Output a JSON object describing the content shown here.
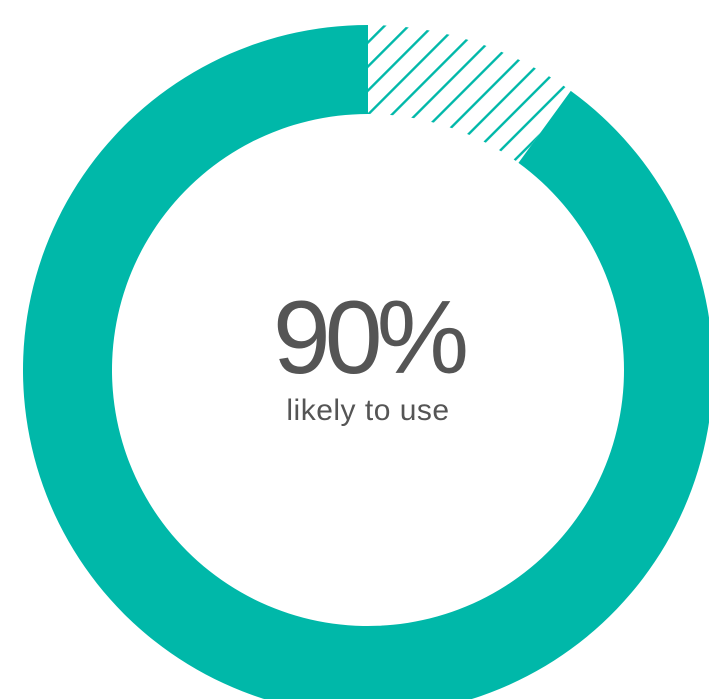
{
  "chart_data": {
    "type": "pie",
    "style": "donut",
    "slices": [
      {
        "label": "likely to use",
        "value": 90,
        "fill": "solid"
      },
      {
        "label": "",
        "value": 10,
        "fill": "hatched"
      }
    ],
    "center_value": "90%",
    "center_caption": "likely to use"
  },
  "colors": {
    "accent": "#00b8a9",
    "text": "#555555",
    "background": "#ffffff"
  }
}
